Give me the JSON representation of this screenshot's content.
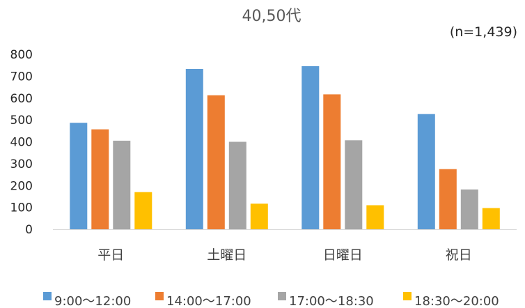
{
  "chart_data": {
    "type": "bar",
    "title": "40,50代",
    "subtitle": "(n=1,439)",
    "xlabel": "",
    "ylabel": "",
    "ylim": [
      0,
      800
    ],
    "yticks": [
      0,
      100,
      200,
      300,
      400,
      500,
      600,
      700,
      800
    ],
    "grid": false,
    "legend_position": "bottom",
    "categories": [
      "平日",
      "土曜日",
      "日曜日",
      "祝日"
    ],
    "series": [
      {
        "name": "9:00～12:00",
        "color": "#5b9bd5",
        "values": [
          487,
          733,
          746,
          527
        ]
      },
      {
        "name": "14:00～17:00",
        "color": "#ed7d31",
        "values": [
          457,
          613,
          617,
          275
        ]
      },
      {
        "name": "17:00～18:30",
        "color": "#a5a5a5",
        "values": [
          405,
          400,
          407,
          182
        ]
      },
      {
        "name": "18:30～20:00",
        "color": "#ffc000",
        "values": [
          170,
          117,
          110,
          97
        ]
      }
    ]
  }
}
